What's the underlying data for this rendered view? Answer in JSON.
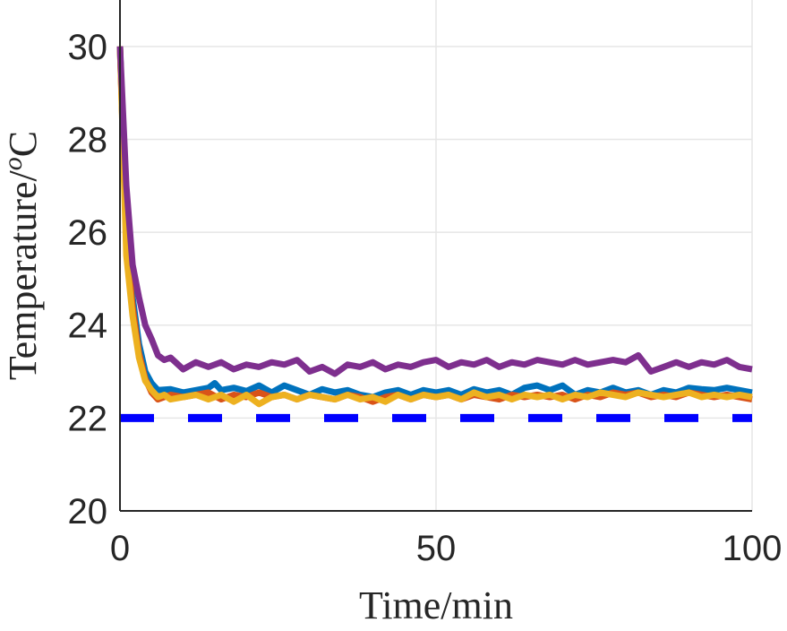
{
  "chart_data": {
    "type": "line",
    "title": "",
    "xlabel": "Time/min",
    "ylabel_main": "Temperature/",
    "ylabel_sup": "o",
    "ylabel_unit": "C",
    "xlim": [
      0,
      100
    ],
    "ylim": [
      20,
      31
    ],
    "x_ticks": [
      0,
      50,
      100
    ],
    "y_ticks": [
      20,
      22,
      24,
      26,
      28,
      30
    ],
    "grid": true,
    "legend": "none",
    "series": [
      {
        "color": "#0072BD",
        "style": "solid",
        "points": [
          [
            0,
            30
          ],
          [
            1,
            26.0
          ],
          [
            2,
            24.6
          ],
          [
            3,
            23.6
          ],
          [
            4,
            23.0
          ],
          [
            5,
            22.75
          ],
          [
            6,
            22.6
          ],
          [
            8,
            22.62
          ],
          [
            10,
            22.55
          ],
          [
            12,
            22.6
          ],
          [
            14,
            22.65
          ],
          [
            15,
            22.75
          ],
          [
            16,
            22.6
          ],
          [
            18,
            22.65
          ],
          [
            20,
            22.58
          ],
          [
            22,
            22.7
          ],
          [
            24,
            22.55
          ],
          [
            26,
            22.7
          ],
          [
            28,
            22.6
          ],
          [
            30,
            22.5
          ],
          [
            32,
            22.62
          ],
          [
            34,
            22.55
          ],
          [
            36,
            22.6
          ],
          [
            38,
            22.5
          ],
          [
            40,
            22.45
          ],
          [
            42,
            22.55
          ],
          [
            44,
            22.6
          ],
          [
            46,
            22.5
          ],
          [
            48,
            22.6
          ],
          [
            50,
            22.55
          ],
          [
            52,
            22.6
          ],
          [
            54,
            22.5
          ],
          [
            56,
            22.62
          ],
          [
            58,
            22.55
          ],
          [
            60,
            22.6
          ],
          [
            62,
            22.5
          ],
          [
            64,
            22.65
          ],
          [
            66,
            22.7
          ],
          [
            68,
            22.6
          ],
          [
            70,
            22.7
          ],
          [
            72,
            22.5
          ],
          [
            74,
            22.6
          ],
          [
            76,
            22.55
          ],
          [
            78,
            22.65
          ],
          [
            80,
            22.55
          ],
          [
            82,
            22.6
          ],
          [
            84,
            22.5
          ],
          [
            86,
            22.6
          ],
          [
            88,
            22.55
          ],
          [
            90,
            22.65
          ],
          [
            92,
            22.62
          ],
          [
            94,
            22.6
          ],
          [
            96,
            22.65
          ],
          [
            98,
            22.6
          ],
          [
            100,
            22.55
          ]
        ]
      },
      {
        "color": "#D95319",
        "style": "solid",
        "points": [
          [
            0,
            30
          ],
          [
            1,
            25.8
          ],
          [
            2,
            24.4
          ],
          [
            3,
            23.4
          ],
          [
            4,
            22.85
          ],
          [
            5,
            22.55
          ],
          [
            6,
            22.4
          ],
          [
            8,
            22.5
          ],
          [
            10,
            22.45
          ],
          [
            12,
            22.5
          ],
          [
            14,
            22.55
          ],
          [
            16,
            22.4
          ],
          [
            18,
            22.5
          ],
          [
            20,
            22.45
          ],
          [
            22,
            22.55
          ],
          [
            24,
            22.45
          ],
          [
            26,
            22.5
          ],
          [
            28,
            22.4
          ],
          [
            30,
            22.5
          ],
          [
            32,
            22.45
          ],
          [
            34,
            22.4
          ],
          [
            36,
            22.5
          ],
          [
            38,
            22.45
          ],
          [
            40,
            22.35
          ],
          [
            42,
            22.45
          ],
          [
            44,
            22.5
          ],
          [
            46,
            22.4
          ],
          [
            48,
            22.5
          ],
          [
            50,
            22.45
          ],
          [
            52,
            22.5
          ],
          [
            54,
            22.4
          ],
          [
            56,
            22.5
          ],
          [
            58,
            22.45
          ],
          [
            60,
            22.4
          ],
          [
            62,
            22.5
          ],
          [
            64,
            22.45
          ],
          [
            66,
            22.5
          ],
          [
            68,
            22.45
          ],
          [
            70,
            22.5
          ],
          [
            72,
            22.4
          ],
          [
            74,
            22.5
          ],
          [
            76,
            22.45
          ],
          [
            78,
            22.55
          ],
          [
            80,
            22.5
          ],
          [
            82,
            22.55
          ],
          [
            84,
            22.45
          ],
          [
            86,
            22.5
          ],
          [
            88,
            22.45
          ],
          [
            90,
            22.55
          ],
          [
            92,
            22.5
          ],
          [
            94,
            22.45
          ],
          [
            96,
            22.5
          ],
          [
            98,
            22.45
          ],
          [
            100,
            22.4
          ]
        ]
      },
      {
        "color": "#EDB120",
        "style": "solid",
        "points": [
          [
            0,
            30
          ],
          [
            1,
            25.5
          ],
          [
            2,
            24.2
          ],
          [
            3,
            23.3
          ],
          [
            4,
            22.8
          ],
          [
            5,
            22.6
          ],
          [
            6,
            22.45
          ],
          [
            7,
            22.5
          ],
          [
            8,
            22.4
          ],
          [
            10,
            22.45
          ],
          [
            12,
            22.5
          ],
          [
            14,
            22.4
          ],
          [
            16,
            22.5
          ],
          [
            18,
            22.35
          ],
          [
            20,
            22.5
          ],
          [
            22,
            22.3
          ],
          [
            24,
            22.45
          ],
          [
            26,
            22.5
          ],
          [
            28,
            22.4
          ],
          [
            30,
            22.5
          ],
          [
            32,
            22.45
          ],
          [
            34,
            22.4
          ],
          [
            36,
            22.5
          ],
          [
            38,
            22.4
          ],
          [
            40,
            22.45
          ],
          [
            42,
            22.35
          ],
          [
            44,
            22.5
          ],
          [
            46,
            22.4
          ],
          [
            48,
            22.5
          ],
          [
            50,
            22.45
          ],
          [
            52,
            22.5
          ],
          [
            54,
            22.4
          ],
          [
            56,
            22.55
          ],
          [
            58,
            22.45
          ],
          [
            60,
            22.5
          ],
          [
            62,
            22.4
          ],
          [
            64,
            22.5
          ],
          [
            66,
            22.45
          ],
          [
            68,
            22.5
          ],
          [
            70,
            22.4
          ],
          [
            72,
            22.5
          ],
          [
            74,
            22.45
          ],
          [
            76,
            22.55
          ],
          [
            78,
            22.5
          ],
          [
            80,
            22.45
          ],
          [
            82,
            22.55
          ],
          [
            84,
            22.5
          ],
          [
            86,
            22.45
          ],
          [
            88,
            22.5
          ],
          [
            90,
            22.55
          ],
          [
            92,
            22.45
          ],
          [
            94,
            22.5
          ],
          [
            96,
            22.45
          ],
          [
            98,
            22.5
          ],
          [
            100,
            22.45
          ]
        ]
      },
      {
        "color": "#7E2F8E",
        "style": "solid",
        "points": [
          [
            0,
            30
          ],
          [
            1,
            27.0
          ],
          [
            2,
            25.3
          ],
          [
            3,
            24.6
          ],
          [
            4,
            24.0
          ],
          [
            5,
            23.7
          ],
          [
            6,
            23.35
          ],
          [
            7,
            23.25
          ],
          [
            8,
            23.3
          ],
          [
            10,
            23.05
          ],
          [
            12,
            23.2
          ],
          [
            14,
            23.1
          ],
          [
            16,
            23.2
          ],
          [
            18,
            23.05
          ],
          [
            20,
            23.15
          ],
          [
            22,
            23.1
          ],
          [
            24,
            23.2
          ],
          [
            26,
            23.15
          ],
          [
            28,
            23.25
          ],
          [
            30,
            23.0
          ],
          [
            32,
            23.1
          ],
          [
            34,
            22.95
          ],
          [
            36,
            23.15
          ],
          [
            38,
            23.1
          ],
          [
            40,
            23.2
          ],
          [
            42,
            23.05
          ],
          [
            44,
            23.15
          ],
          [
            46,
            23.1
          ],
          [
            48,
            23.2
          ],
          [
            50,
            23.25
          ],
          [
            52,
            23.1
          ],
          [
            54,
            23.2
          ],
          [
            56,
            23.15
          ],
          [
            58,
            23.25
          ],
          [
            60,
            23.1
          ],
          [
            62,
            23.2
          ],
          [
            64,
            23.15
          ],
          [
            66,
            23.25
          ],
          [
            68,
            23.2
          ],
          [
            70,
            23.15
          ],
          [
            72,
            23.25
          ],
          [
            74,
            23.15
          ],
          [
            76,
            23.2
          ],
          [
            78,
            23.25
          ],
          [
            80,
            23.2
          ],
          [
            82,
            23.35
          ],
          [
            84,
            23.0
          ],
          [
            86,
            23.1
          ],
          [
            88,
            23.2
          ],
          [
            90,
            23.1
          ],
          [
            92,
            23.2
          ],
          [
            94,
            23.15
          ],
          [
            96,
            23.25
          ],
          [
            98,
            23.1
          ],
          [
            100,
            23.05
          ]
        ]
      },
      {
        "color": "#0000FF",
        "style": "dashed",
        "points": [
          [
            0,
            22
          ],
          [
            100,
            22
          ]
        ]
      }
    ]
  }
}
